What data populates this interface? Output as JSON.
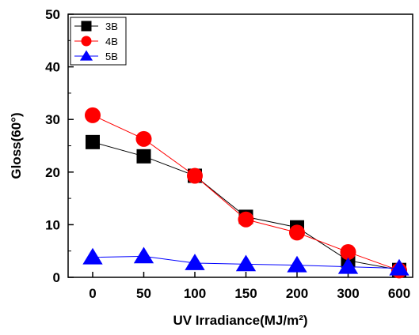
{
  "chart_data": {
    "type": "line",
    "categories": [
      "0",
      "50",
      "100",
      "150",
      "200",
      "300",
      "600"
    ],
    "series": [
      {
        "name": "3B",
        "marker": "square",
        "color": "#000000",
        "values": [
          25.7,
          23.0,
          19.3,
          11.5,
          9.5,
          3.2,
          1.4
        ]
      },
      {
        "name": "4B",
        "marker": "circle",
        "color": "#ff0000",
        "values": [
          30.8,
          26.3,
          19.3,
          11.0,
          8.5,
          4.8,
          1.3
        ]
      },
      {
        "name": "5B",
        "marker": "triangle",
        "color": "#0000ff",
        "values": [
          3.8,
          4.0,
          2.7,
          2.5,
          2.3,
          2.0,
          1.7
        ]
      }
    ],
    "ylim": [
      0,
      50
    ],
    "yticks": [
      0,
      10,
      20,
      30,
      40,
      50
    ],
    "ylabel": "Gloss(60°)",
    "xlabel": "UV Irradiance(MJ/m²)",
    "legend_position": "top-left",
    "grid": false
  }
}
